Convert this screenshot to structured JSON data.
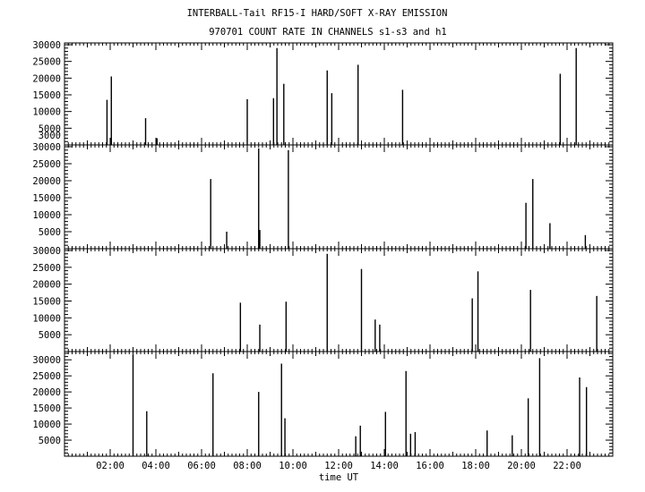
{
  "title_line1": "INTERBALL-Tail RF15-I HARD/SOFT X-RAY EMISSION",
  "title_line2": "970701  COUNT RATE IN CHANNELS s1-s3 and h1",
  "xlabel": "time UT",
  "chart_data": [
    {
      "type": "bar",
      "panel": "s1",
      "ylim": [
        0,
        30000
      ],
      "yticks": [
        3000,
        5000,
        10000,
        15000,
        20000,
        25000,
        30000
      ],
      "xlim": [
        0,
        24
      ],
      "xticks": [
        2,
        4,
        6,
        8,
        10,
        12,
        14,
        16,
        18,
        20,
        22
      ],
      "xtick_labels": [
        "02:00",
        "04:00",
        "06:00",
        "08:00",
        "10:00",
        "12:00",
        "14:00",
        "16:00",
        "18:00",
        "20:00",
        "22:00"
      ],
      "x": [
        1.86,
        2.05,
        3.55,
        4.05,
        8.0,
        9.15,
        9.3,
        9.6,
        11.5,
        11.7,
        12.85,
        14.8,
        21.7,
        22.4
      ],
      "values": [
        13500,
        20500,
        8000,
        2000,
        13700,
        14000,
        29000,
        18300,
        22300,
        15500,
        24000,
        16500,
        21300,
        29000
      ]
    },
    {
      "type": "bar",
      "panel": "s2",
      "ylim": [
        0,
        30000
      ],
      "yticks": [
        5000,
        10000,
        15000,
        20000,
        25000,
        30000
      ],
      "xlim": [
        0,
        24
      ],
      "xticks": [
        2,
        4,
        6,
        8,
        10,
        12,
        14,
        16,
        18,
        20,
        22
      ],
      "xtick_labels": [
        "02:00",
        "04:00",
        "06:00",
        "08:00",
        "10:00",
        "12:00",
        "14:00",
        "16:00",
        "18:00",
        "20:00",
        "22:00"
      ],
      "x": [
        6.4,
        7.1,
        8.5,
        8.55,
        9.8,
        20.2,
        20.5,
        21.25,
        22.8
      ],
      "values": [
        20500,
        5000,
        29500,
        5500,
        29000,
        13500,
        20500,
        7500,
        4000
      ]
    },
    {
      "type": "bar",
      "panel": "s3",
      "ylim": [
        0,
        30000
      ],
      "yticks": [
        5000,
        10000,
        15000,
        20000,
        25000,
        30000
      ],
      "xlim": [
        0,
        24
      ],
      "xticks": [
        2,
        4,
        6,
        8,
        10,
        12,
        14,
        16,
        18,
        20,
        22
      ],
      "xtick_labels": [
        "02:00",
        "04:00",
        "06:00",
        "08:00",
        "10:00",
        "12:00",
        "14:00",
        "16:00",
        "18:00",
        "20:00",
        "22:00"
      ],
      "x": [
        7.7,
        8.55,
        9.7,
        11.5,
        13.0,
        13.6,
        13.8,
        17.85,
        18.1,
        20.4,
        23.3
      ],
      "values": [
        14500,
        8000,
        14800,
        29000,
        24500,
        9500,
        8000,
        15800,
        23800,
        18300,
        16500
      ]
    },
    {
      "type": "bar",
      "panel": "h1",
      "ylim": [
        0,
        32000
      ],
      "yticks": [
        5000,
        10000,
        15000,
        20000,
        25000,
        30000
      ],
      "xlim": [
        0,
        24
      ],
      "xticks": [
        2,
        4,
        6,
        8,
        10,
        12,
        14,
        16,
        18,
        20,
        22
      ],
      "xtick_labels": [
        "02:00",
        "04:00",
        "06:00",
        "08:00",
        "10:00",
        "12:00",
        "14:00",
        "16:00",
        "18:00",
        "20:00",
        "22:00"
      ],
      "x": [
        3.0,
        3.6,
        6.5,
        8.5,
        9.5,
        9.65,
        12.75,
        12.95,
        14.05,
        14.95,
        15.15,
        15.35,
        18.5,
        19.6,
        20.3,
        20.8,
        22.55,
        22.85
      ],
      "values": [
        31500,
        14000,
        25800,
        20000,
        28800,
        11800,
        6200,
        9500,
        13800,
        26500,
        7000,
        7500,
        8000,
        6500,
        18000,
        30500,
        24500,
        21500
      ]
    }
  ]
}
